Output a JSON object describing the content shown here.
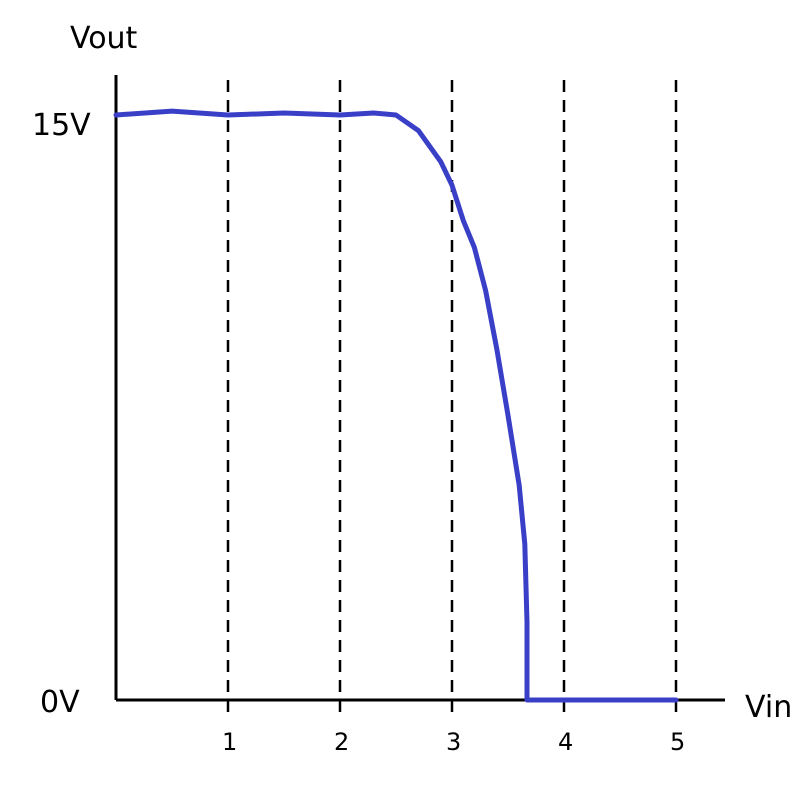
{
  "chart_data": {
    "type": "line",
    "ylabel": "Vout",
    "xlabel": "Vin",
    "xlim": [
      0,
      5.4
    ],
    "ylim": [
      0,
      15
    ],
    "x_ticks": [
      "1",
      "2",
      "3",
      "4",
      "5"
    ],
    "y_ticks": [
      "15V",
      "0V"
    ],
    "grid": "vertical dashed lines at x ticks",
    "series": [
      {
        "color": "#3a3fc8",
        "x": [
          0,
          0.5,
          1,
          1.5,
          2,
          2.3,
          2.5,
          2.7,
          2.9,
          3.0,
          3.1,
          3.2,
          3.3,
          3.4,
          3.5,
          3.6,
          3.65,
          3.67,
          3.67,
          4,
          4.5,
          5
        ],
        "y": [
          15,
          15.1,
          15,
          15.05,
          15,
          15.05,
          15.0,
          14.6,
          13.8,
          13.2,
          12.3,
          11.6,
          10.5,
          9.0,
          7.3,
          5.5,
          4.0,
          2.0,
          0,
          0,
          0,
          0
        ]
      }
    ]
  }
}
